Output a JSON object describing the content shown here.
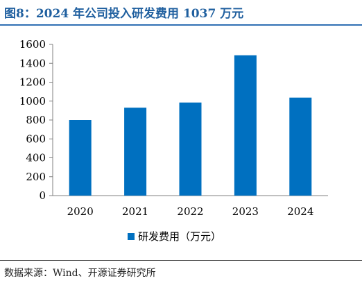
{
  "title": "图8：2024 年公司投入研发费用 1037 万元",
  "source": "数据来源：Wind、开源证券研究所",
  "chart_data": {
    "type": "bar",
    "categories": [
      "2020",
      "2021",
      "2022",
      "2023",
      "2024"
    ],
    "series": [
      {
        "name": "研发费用（万元）",
        "values": [
          800,
          930,
          985,
          1485,
          1037
        ],
        "color": "#0070c0"
      }
    ],
    "yticks": [
      "0",
      "200",
      "400",
      "600",
      "800",
      "1000",
      "1200",
      "1400",
      "1600"
    ],
    "ylim": [
      0,
      1600
    ],
    "grid": false,
    "legend": "bottom"
  }
}
